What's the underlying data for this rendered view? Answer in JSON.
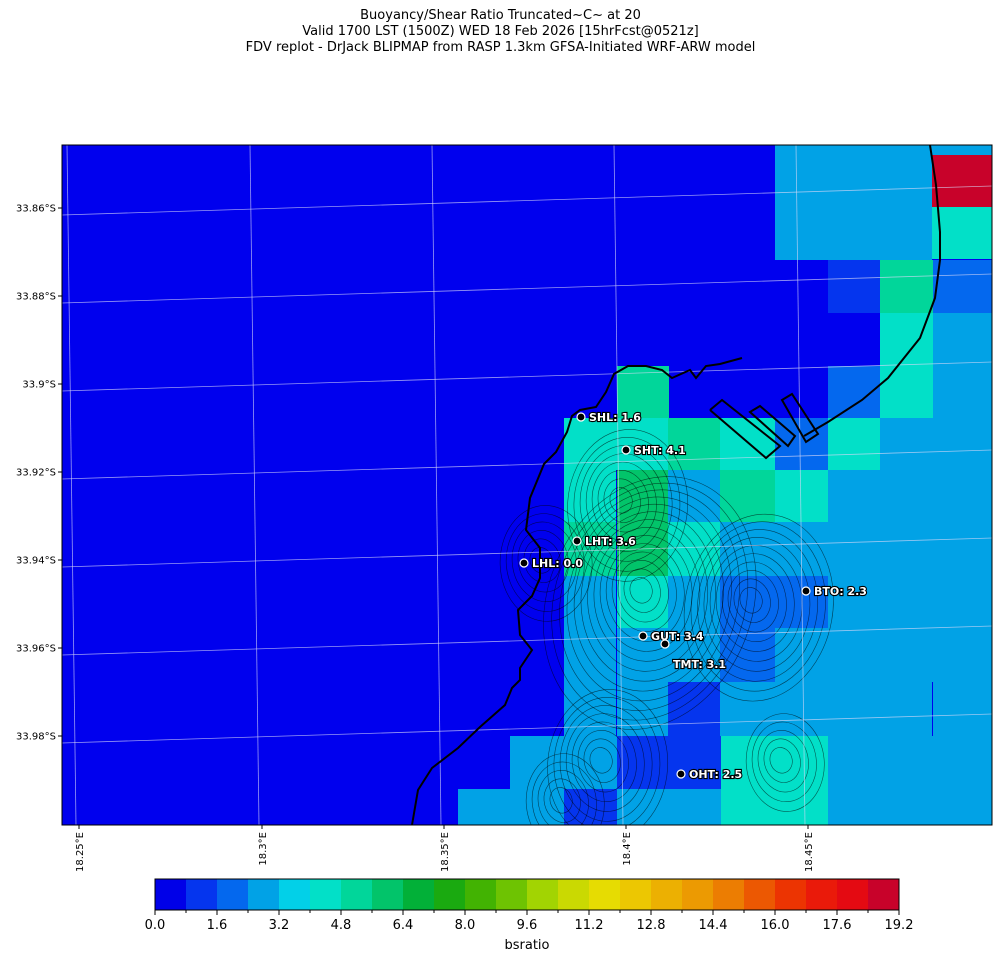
{
  "header": {
    "line1": "Buoyancy/Shear Ratio Truncated~C~    at 20",
    "line2": "Valid 1700 LST (1500Z) WED 18 Feb 2026 [15hrFcst@0521z]",
    "line3": "FDV replot - DrJack BLIPMAP from RASP 1.3km GFSA-Initiated WRF-ARW model"
  },
  "map": {
    "lat_labels": [
      "33.86°S",
      "33.88°S",
      "33.9°S",
      "33.92°S",
      "33.94°S",
      "33.96°S",
      "33.98°S"
    ],
    "lon_labels": [
      "18.25°E",
      "18.3°E",
      "18.35°E",
      "18.4°E",
      "18.45°E"
    ],
    "stations": [
      {
        "label": "SHL: 1.6",
        "value": 1.6
      },
      {
        "label": "SHT: 4.1",
        "value": 4.1
      },
      {
        "label": "LHT: 3.6",
        "value": 3.6
      },
      {
        "label": "LHL: 0.0",
        "value": 0.0
      },
      {
        "label": "BTO: 2.3",
        "value": 2.3
      },
      {
        "label": "GUT: 3.4",
        "value": 3.4
      },
      {
        "label": "TMT: 3.1",
        "value": 3.1
      },
      {
        "label": "OHT: 2.5",
        "value": 2.5
      }
    ],
    "colors": {
      "land_contour": "#000000",
      "grid": "#d8d8f8",
      "background": "#0000ee"
    }
  },
  "colorbar": {
    "label": "bsratio",
    "tick_labels": [
      "0.0",
      "1.6",
      "3.2",
      "4.8",
      "6.4",
      "8.0",
      "9.6",
      "11.2",
      "12.8",
      "14.4",
      "16.0",
      "17.6",
      "19.2"
    ],
    "colors": [
      "#0000e8",
      "#0535ee",
      "#0468ee",
      "#01a2e6",
      "#02d0e8",
      "#02e0c8",
      "#01d69a",
      "#02c46a",
      "#02b038",
      "#1aaa10",
      "#42b302",
      "#6ec302",
      "#a2d402",
      "#cad902",
      "#e6dc02",
      "#ecc702",
      "#ecb002",
      "#ec9a02",
      "#ec7d02",
      "#ec5802",
      "#ec3402",
      "#ea1a0a",
      "#e40a12",
      "#c8022a"
    ]
  }
}
